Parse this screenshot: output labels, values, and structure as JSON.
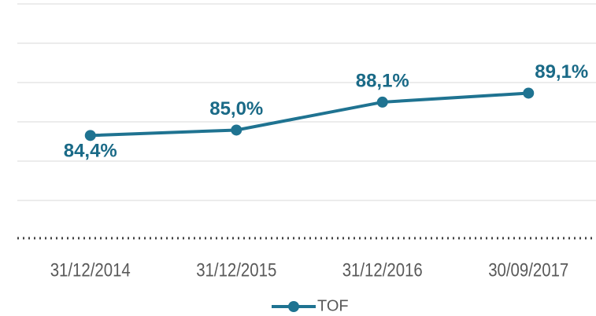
{
  "chart_data": {
    "type": "line",
    "categories": [
      "31/12/2014",
      "31/12/2015",
      "31/12/2016",
      "30/09/2017"
    ],
    "series": [
      {
        "name": "TOF",
        "color": "#1f7391",
        "values": [
          84.4,
          85.0,
          88.1,
          89.1
        ],
        "value_labels": [
          "84,4%",
          "85,0%",
          "88,1%",
          "89,1%"
        ]
      }
    ],
    "ylim": [
      73,
      99
    ],
    "grid": true,
    "legend": "bottom"
  }
}
